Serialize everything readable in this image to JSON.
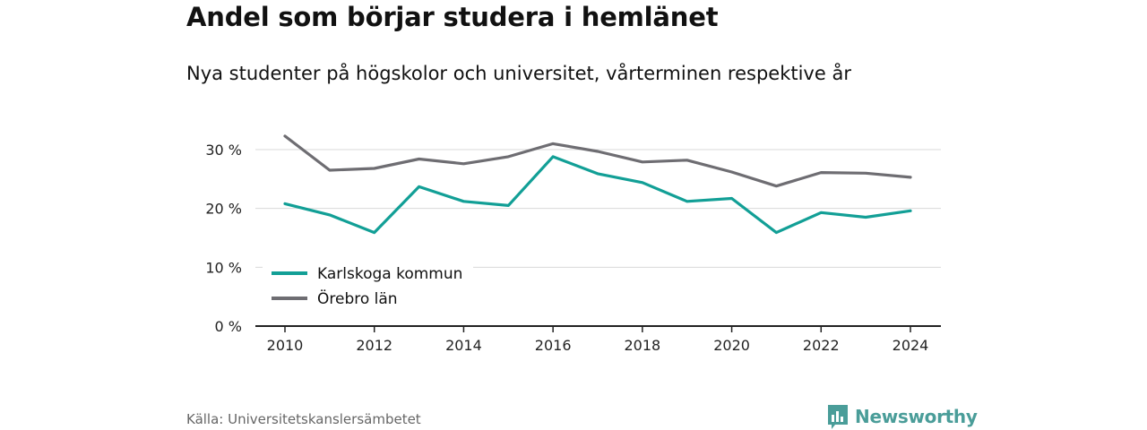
{
  "header": {
    "title": "Andel som börjar studera i hemlänet",
    "subtitle": "Nya studenter på högskolor och universitet, vårterminen respektive år"
  },
  "footer": {
    "source": "Källa: Universitetskanslersämbetet",
    "brand": "Newsworthy"
  },
  "colors": {
    "karlskoga": "#129f96",
    "orebro": "#6e6d72",
    "grid": "#d9d9d9",
    "axis": "#222222",
    "brand": "#4a9d99"
  },
  "icons": {
    "brand": "bar-chart-speech-bubble-icon"
  },
  "chart_data": {
    "type": "line",
    "x": [
      2010,
      2011,
      2012,
      2013,
      2014,
      2015,
      2016,
      2017,
      2018,
      2019,
      2020,
      2021,
      2022,
      2023,
      2024
    ],
    "x_ticks": [
      "2010",
      "2012",
      "2014",
      "2016",
      "2018",
      "2020",
      "2022",
      "2024"
    ],
    "x_tick_values": [
      2010,
      2012,
      2014,
      2016,
      2018,
      2020,
      2022,
      2024
    ],
    "y_ticks": [
      "0 %",
      "10 %",
      "20 %",
      "30 %"
    ],
    "y_tick_values": [
      0,
      10,
      20,
      30
    ],
    "ylim": [
      0,
      30
    ],
    "grid": true,
    "legend_position": "bottom-left",
    "series": [
      {
        "name": "Karlskoga kommun",
        "values": [
          20.8,
          18.9,
          15.9,
          23.7,
          21.2,
          20.5,
          28.8,
          25.9,
          24.4,
          21.2,
          21.7,
          15.9,
          19.3,
          18.5,
          19.6
        ]
      },
      {
        "name": "Örebro län",
        "values": [
          32.3,
          26.5,
          26.8,
          28.4,
          27.6,
          28.8,
          31.0,
          29.7,
          27.9,
          28.2,
          26.2,
          23.8,
          26.1,
          26.0,
          25.3
        ]
      }
    ]
  }
}
